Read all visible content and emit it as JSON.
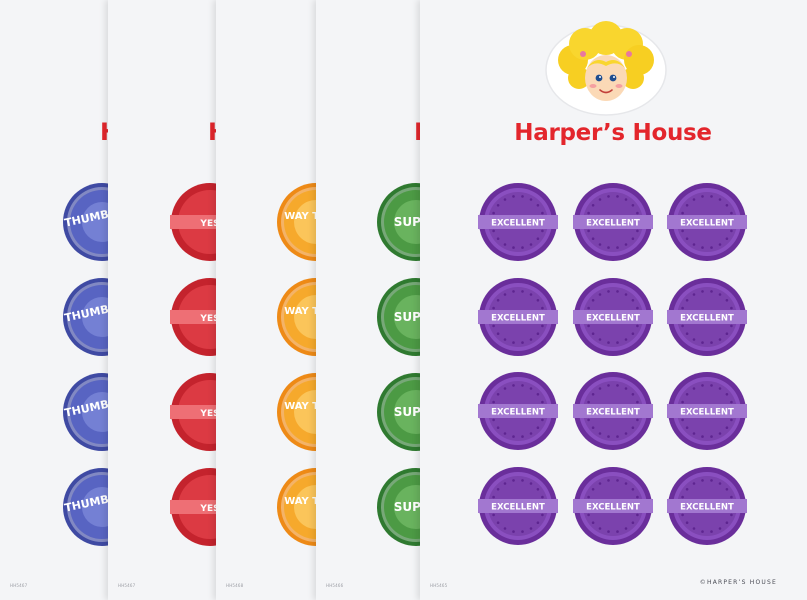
{
  "brand": {
    "title": "Harper’s House",
    "copyright": "©HARPER’S HOUSE",
    "accent_color": "#e3262c"
  },
  "sheets": [
    {
      "code": "HH5467",
      "label": "THUMBS UP",
      "color": "#4b57b4",
      "style": "sunburst"
    },
    {
      "code": "HH5467",
      "label": "YES",
      "color": "#d9343d",
      "style": "banner"
    },
    {
      "code": "HH5468",
      "label": "WAY TO GO",
      "color": "#f39a26",
      "style": "sunburst"
    },
    {
      "code": "HH5466",
      "label": "SUPER",
      "color": "#3b8a3a",
      "style": "sunburst"
    },
    {
      "code": "HH5465",
      "label": "EXCELLENT",
      "color": "#7b42ad",
      "style": "banner"
    }
  ],
  "mascot_icon": "girl-with-yellow-curly-hair-icon"
}
